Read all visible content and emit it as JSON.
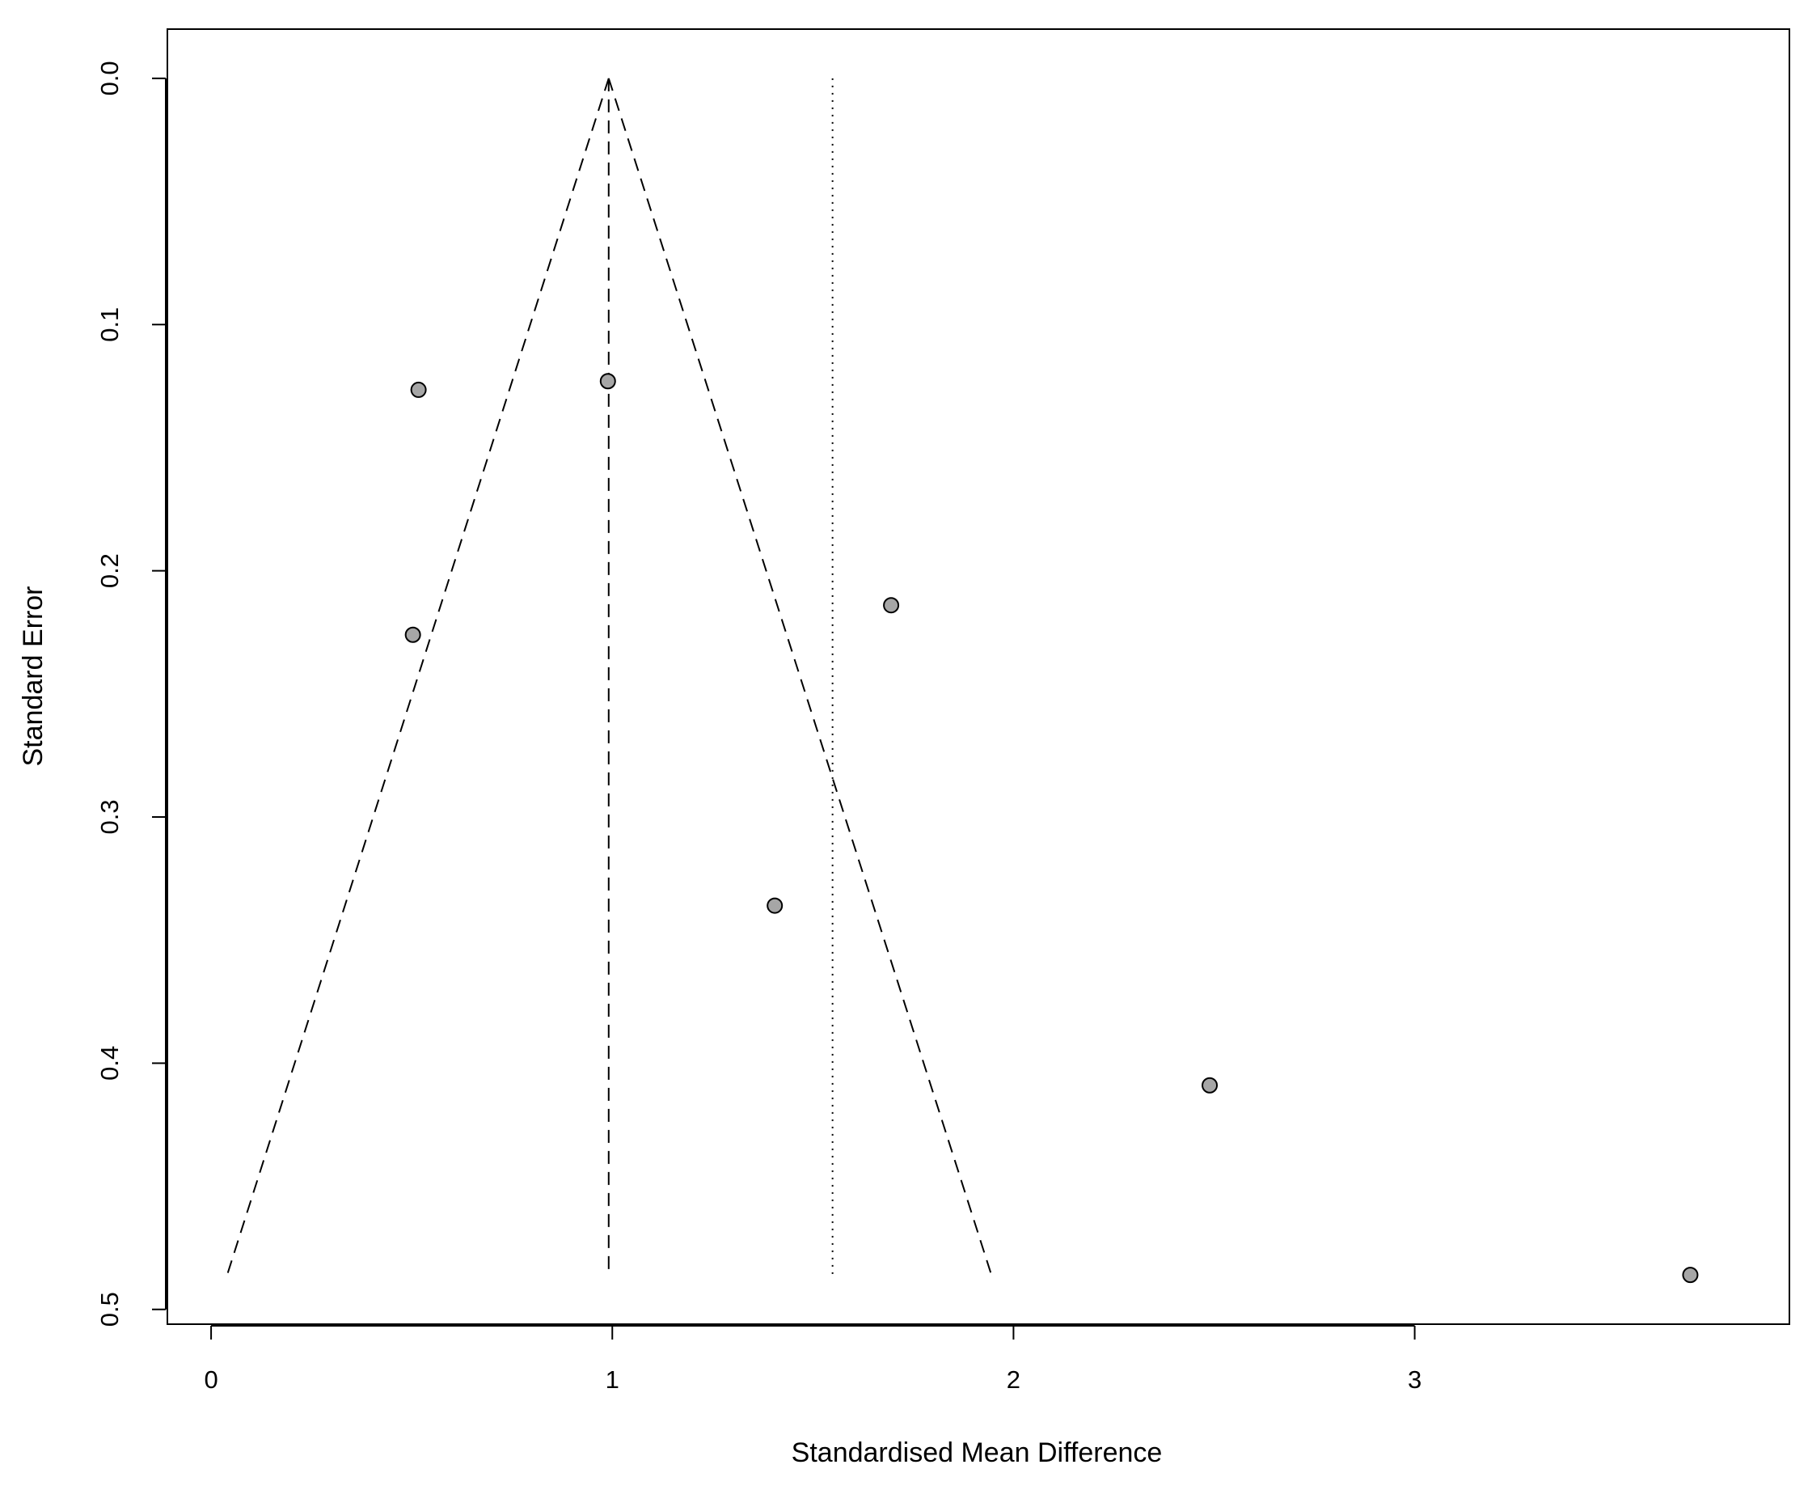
{
  "chart_data": {
    "type": "scatter",
    "x_label": "Standardised Mean Difference",
    "y_label": "Standard Error",
    "xlim": [
      -0.109,
      3.934
    ],
    "ylim": [
      0.506,
      -0.02
    ],
    "xticks": [
      0,
      1,
      2,
      3
    ],
    "yticks": [
      {
        "value": 0,
        "label": "0.0"
      },
      0.1,
      0.2,
      0.3,
      0.4,
      0.5
    ],
    "series": [
      {
        "color": "#a6a6a6",
        "x": [
          0.517,
          0.989,
          0.503,
          1.695,
          1.405,
          2.489,
          3.687
        ],
        "values": [
          0.1265,
          0.123,
          0.226,
          0.214,
          0.336,
          0.409,
          0.486
        ]
      }
    ],
    "funnel": {
      "center": 0.991,
      "lower": 0.04,
      "upper": 1.945,
      "apex_se": 0,
      "se_max": 0.486
    },
    "reference_line": 1.549
  }
}
